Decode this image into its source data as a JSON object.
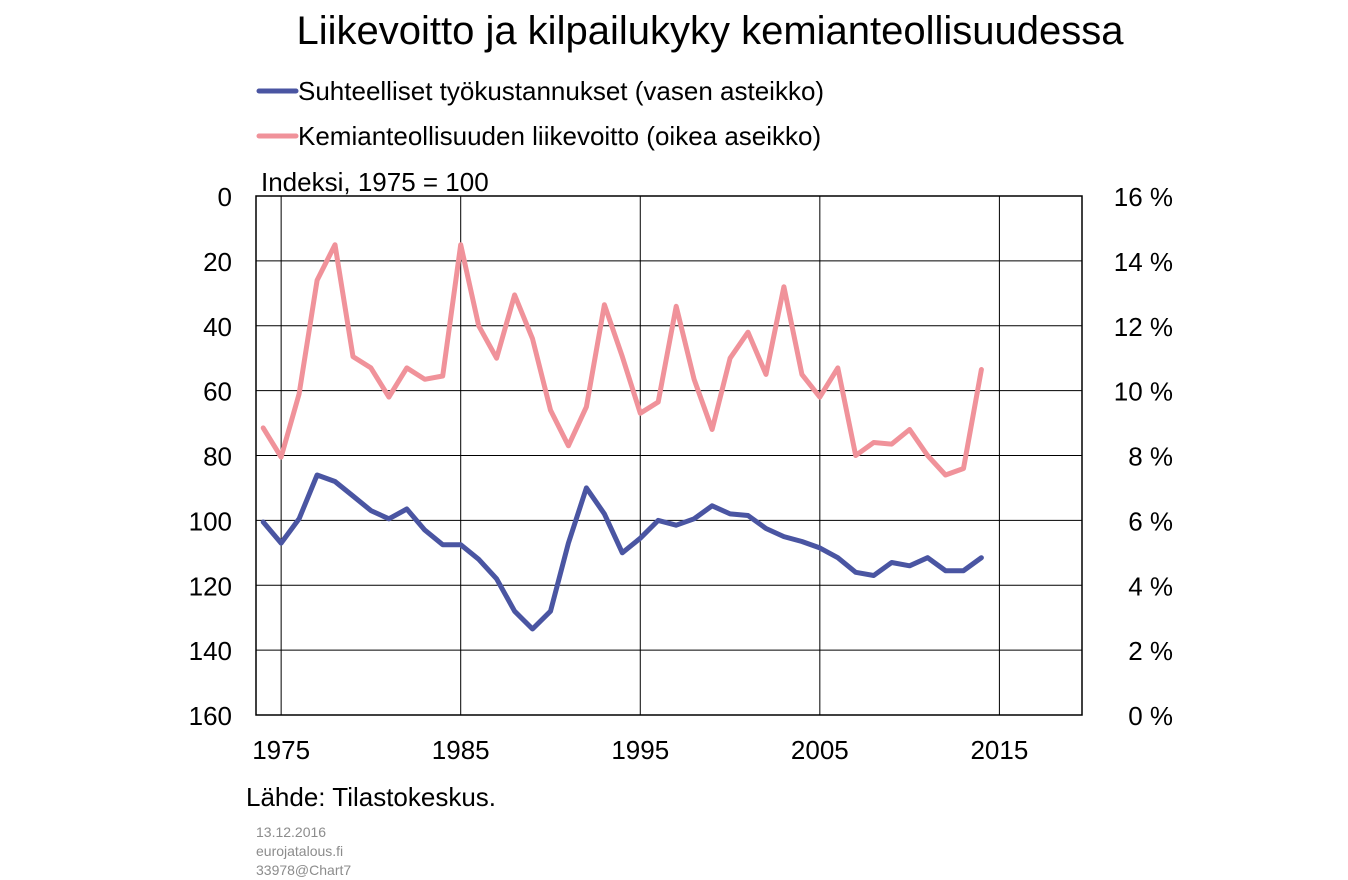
{
  "chart_data": {
    "type": "line",
    "title": "Liikevoitto ja kilpailukyky kemianteollisuudessa",
    "left_axis_note": "Indeksi, 1975 = 100",
    "source": "Lähde: Tilastokeskus.",
    "x_ticks": [
      "1975",
      "1985",
      "1995",
      "2005",
      "2015"
    ],
    "x_tick_values": [
      1975,
      1985,
      1995,
      2005,
      2015
    ],
    "xlim": [
      1973.6,
      2019.6
    ],
    "left_axis": {
      "ticks": [
        "0",
        "20",
        "40",
        "60",
        "80",
        "100",
        "120",
        "140",
        "160"
      ],
      "tick_values": [
        0,
        20,
        40,
        60,
        80,
        100,
        120,
        140,
        160
      ],
      "ylim": [
        0,
        160
      ],
      "inverted": true
    },
    "right_axis": {
      "ticks": [
        "16 %",
        "14 %",
        "12 %",
        "10 %",
        "8 %",
        "6 %",
        "4 %",
        "2 %",
        "0 %"
      ],
      "tick_values": [
        16,
        14,
        12,
        10,
        8,
        6,
        4,
        2,
        0
      ],
      "ylim": [
        0,
        16
      ]
    },
    "grid": true,
    "legend_position": "top-left",
    "series": [
      {
        "name": "Suhteelliset työkustannukset (vasen asteikko)",
        "axis": "left",
        "color": "#4a55a2",
        "x": [
          1974,
          1975,
          1976,
          1977,
          1978,
          1979,
          1980,
          1981,
          1982,
          1983,
          1984,
          1985,
          1986,
          1987,
          1988,
          1989,
          1990,
          1991,
          1992,
          1993,
          1994,
          1995,
          1996,
          1997,
          1998,
          1999,
          2000,
          2001,
          2002,
          2003,
          2004,
          2005,
          2006,
          2007,
          2008,
          2009,
          2010,
          2011,
          2012,
          2013,
          2014
        ],
        "values": [
          100.5,
          107,
          99.5,
          86,
          88,
          92.5,
          97,
          99.5,
          96.5,
          103,
          107.5,
          107.5,
          112,
          118,
          128,
          133.5,
          128,
          107,
          90,
          98,
          110,
          105.5,
          100,
          101.5,
          99.5,
          95.5,
          98,
          98.5,
          102.5,
          105,
          106.5,
          108.5,
          111.5,
          116,
          117,
          113,
          114,
          111.5,
          115.5,
          115.5,
          111.5
        ]
      },
      {
        "name": "Kemianteollisuuden liikevoitto (oikea aseikko)",
        "axis": "right",
        "color": "#f0929a",
        "x": [
          1974,
          1975,
          1976,
          1977,
          1978,
          1979,
          1980,
          1981,
          1982,
          1983,
          1984,
          1985,
          1986,
          1987,
          1988,
          1989,
          1990,
          1991,
          1992,
          1993,
          1994,
          1995,
          1996,
          1997,
          1998,
          1999,
          2000,
          2001,
          2002,
          2003,
          2004,
          2005,
          2006,
          2007,
          2008,
          2009,
          2010,
          2011,
          2012,
          2013,
          2014
        ],
        "values": [
          8.85,
          7.95,
          9.9,
          13.4,
          14.5,
          11.05,
          10.7,
          9.8,
          10.7,
          10.35,
          10.45,
          14.5,
          12,
          11,
          12.95,
          11.6,
          9.4,
          8.3,
          9.5,
          12.65,
          11.05,
          9.3,
          9.65,
          12.6,
          10.35,
          8.8,
          11,
          11.8,
          10.5,
          13.2,
          10.5,
          9.8,
          10.7,
          8,
          8.4,
          8.35,
          8.8,
          8,
          7.4,
          7.6,
          10.65
        ]
      }
    ]
  },
  "footer": {
    "date": "13.12.2016",
    "site": "eurojatalous.fi",
    "chart_id": "33978@Chart7"
  }
}
